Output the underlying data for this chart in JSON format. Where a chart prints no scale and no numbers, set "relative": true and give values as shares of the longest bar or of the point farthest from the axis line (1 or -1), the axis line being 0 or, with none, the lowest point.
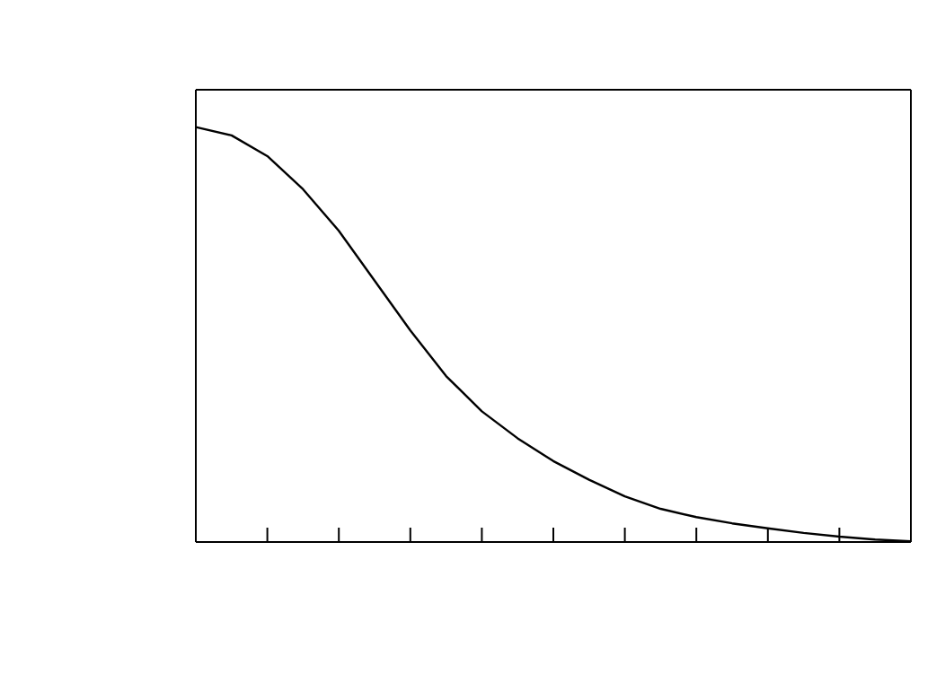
{
  "chart_data": {
    "type": "line",
    "relative": true,
    "categories": [
      null,
      null,
      null,
      null,
      null,
      null,
      null,
      null,
      null,
      null,
      null,
      null,
      null,
      null,
      null,
      null,
      null,
      null,
      null,
      null,
      null
    ],
    "series": [
      {
        "color": "#000000",
        "values": [
          1,
          0.98,
          0.93,
          0.85,
          0.75,
          0.63,
          0.51,
          0.4,
          0.315,
          0.25,
          0.195,
          0.15,
          0.11,
          0.08,
          0.06,
          0.045,
          0.033,
          0.022,
          0.013,
          0.006,
          0.002
        ]
      }
    ],
    "marker": "none",
    "line_style": "solid"
  }
}
